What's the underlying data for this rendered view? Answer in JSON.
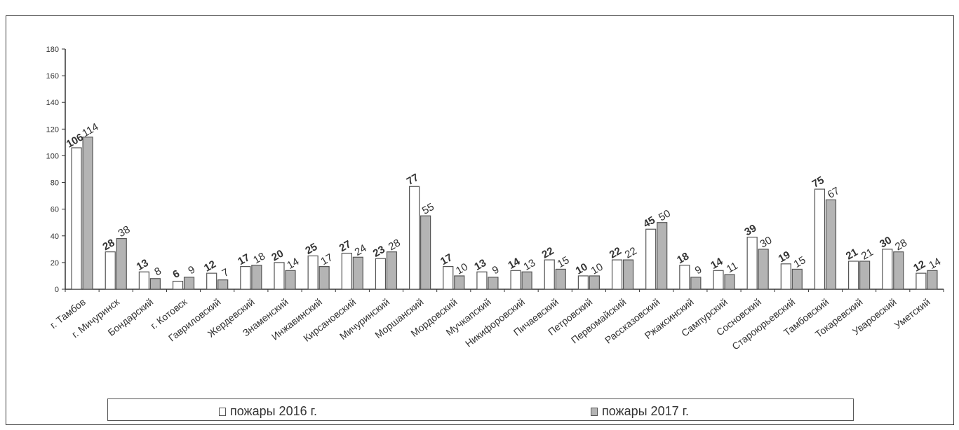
{
  "chart_data": {
    "type": "bar",
    "categories": [
      "г. Тамбов",
      "г. Мичуринск",
      "Бондарский",
      "г. Котовск",
      "Гавриловский",
      "Жердевский",
      "Знаменский",
      "Инжавинский",
      "Кирсановский",
      "Мичуринский",
      "Моршанский",
      "Мордовский",
      "Мучкапский",
      "Никифоровский",
      "Пичаевский",
      "Петровский",
      "Первомайский",
      "Рассказовский",
      "Ржаксинский",
      "Сампурский",
      "Сосновский",
      "Староюрьевский",
      "Тамбовский",
      "Токаревский",
      "Уваровский",
      "Уметский"
    ],
    "series": [
      {
        "name": "пожары 2016 г.",
        "values": [
          106,
          28,
          13,
          6,
          12,
          17,
          20,
          25,
          27,
          23,
          77,
          17,
          13,
          14,
          22,
          10,
          22,
          45,
          18,
          14,
          39,
          19,
          75,
          21,
          30,
          12
        ],
        "color": "#ffffff"
      },
      {
        "name": "пожары 2017 г.",
        "values": [
          114,
          38,
          8,
          9,
          7,
          18,
          14,
          17,
          24,
          28,
          55,
          10,
          9,
          13,
          15,
          10,
          22,
          50,
          9,
          11,
          30,
          15,
          67,
          21,
          28,
          14
        ],
        "color": "#b4b4b4"
      }
    ],
    "ylim": [
      0,
      180
    ],
    "yticks": [
      "0",
      "20",
      "40",
      "60",
      "80",
      "100",
      "120",
      "140",
      "160",
      "180"
    ],
    "legend_position": "bottom",
    "grid": false
  },
  "legend": {
    "label_2016": "пожары 2016 г.",
    "label_2017": "пожары 2017 г."
  }
}
